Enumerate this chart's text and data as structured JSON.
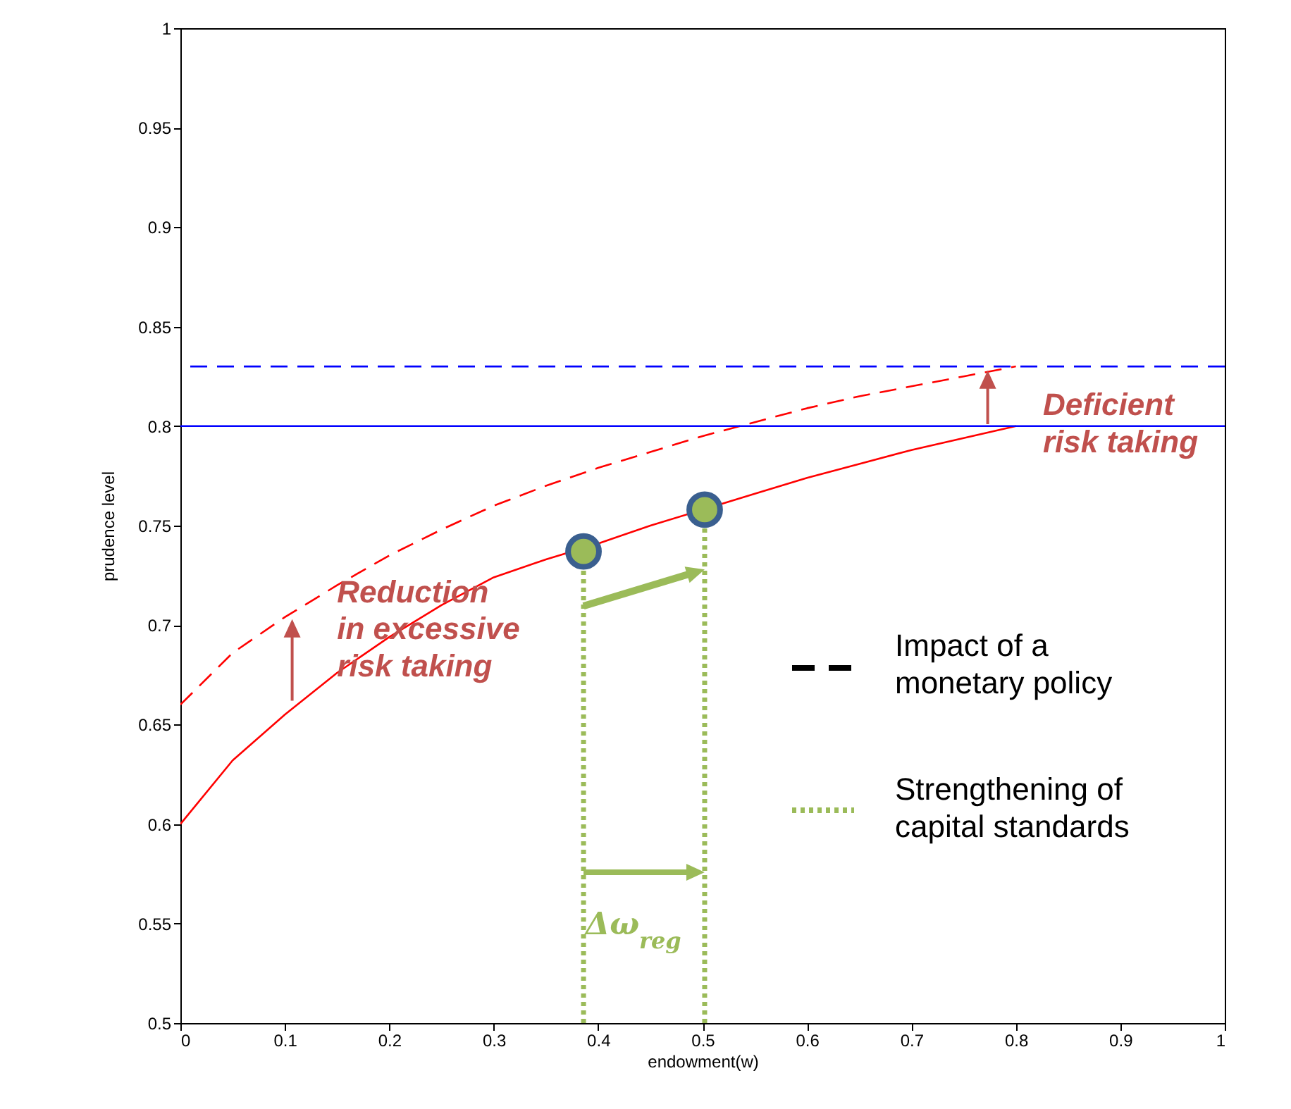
{
  "chart_data": {
    "type": "line",
    "xlabel": "endowment(w)",
    "ylabel": "prudence level",
    "xlim": [
      0,
      1
    ],
    "ylim": [
      0.5,
      1
    ],
    "xticks": [
      0,
      0.1,
      0.2,
      0.3,
      0.4,
      0.5,
      0.6,
      0.7,
      0.8,
      0.9,
      1
    ],
    "yticks": [
      0.5,
      0.55,
      0.6,
      0.65,
      0.7,
      0.75,
      0.8,
      0.85,
      0.9,
      0.95,
      1
    ],
    "legend": "right",
    "series": [
      {
        "type": "line",
        "color": "#ff0000",
        "line_style": "solid",
        "x": [
          0,
          0.05,
          0.1,
          0.15,
          0.2,
          0.25,
          0.3,
          0.35,
          0.4,
          0.45,
          0.55,
          0.6,
          0.65,
          0.7,
          0.75,
          0.8
        ],
        "values": [
          0.6,
          0.632,
          0.655,
          0.676,
          0.694,
          0.71,
          0.724,
          0.733,
          0.741,
          0.75,
          0.766,
          0.774,
          0.781,
          0.788,
          0.794,
          0.8
        ]
      },
      {
        "type": "line",
        "color": "#ff0000",
        "line_style": "dashed",
        "x": [
          0,
          0.05,
          0.1,
          0.15,
          0.2,
          0.25,
          0.3,
          0.35,
          0.4,
          0.45,
          0.5,
          0.55,
          0.6,
          0.65,
          0.7,
          0.75,
          0.8
        ],
        "values": [
          0.66,
          0.686,
          0.704,
          0.72,
          0.735,
          0.748,
          0.76,
          0.77,
          0.779,
          0.787,
          0.795,
          0.802,
          0.809,
          0.815,
          0.82,
          0.825,
          0.83
        ]
      },
      {
        "type": "line",
        "name": "Strengthening of capital standards",
        "color": "#9bbb59",
        "line_style": "dotted",
        "x": [
          0.386,
          0.386
        ],
        "values": [
          0.5,
          0.737
        ]
      },
      {
        "type": "line",
        "color": "#9bbb59",
        "line_style": "dotted",
        "x": [
          0.502,
          0.502
        ],
        "values": [
          0.5,
          0.758
        ]
      },
      {
        "type": "scatter",
        "color": "#9bbb59",
        "marker": "circle",
        "x": [
          0.386,
          0.502
        ],
        "values": [
          0.737,
          0.758
        ]
      }
    ],
    "ref_lines": [
      {
        "axis": "y",
        "value": 0.8,
        "color": "#0000ff",
        "line_style": "solid"
      },
      {
        "axis": "y",
        "value": 0.83,
        "color": "#0000ff",
        "line_style": "dashed"
      }
    ],
    "annotations": [
      {
        "text": "Reduction in excessive risk taking",
        "x": 0.15,
        "y": 0.724
      },
      "Deficient risk taking",
      {
        "text": "Δω$_{reg}$",
        "x": 0.388,
        "y": 0.557
      },
      "Impact of a monetary policy"
    ]
  }
}
